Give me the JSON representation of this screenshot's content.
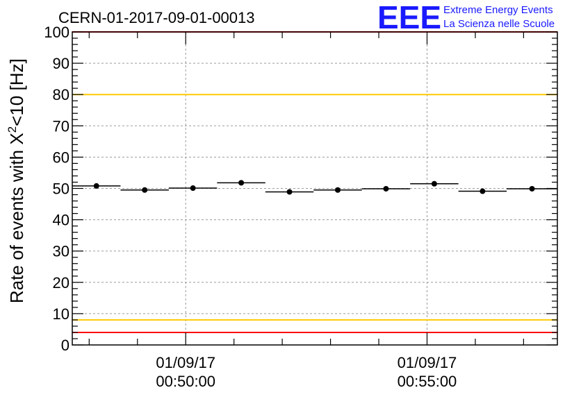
{
  "chart_data": {
    "type": "scatter",
    "title": "CERN-01-2017-09-01-00013",
    "ylabel_prefix": "Rate of events with X",
    "ylabel_sup": "2",
    "ylabel_suffix": "<10 [Hz]",
    "xlabel": "",
    "ylim": [
      0,
      100
    ],
    "yticks": [
      "0",
      "10",
      "20",
      "30",
      "40",
      "50",
      "60",
      "70",
      "80",
      "90",
      "100"
    ],
    "xlim_minutes": [
      47.65,
      57.7
    ],
    "xticks": [
      {
        "minute": 50,
        "date": "01/09/17",
        "time": "00:50:00"
      },
      {
        "minute": 55,
        "date": "01/09/17",
        "time": "00:55:00"
      }
    ],
    "grid": true,
    "points": [
      {
        "x_start": 47.65,
        "x_end": 48.65,
        "y": 50.8
      },
      {
        "x_start": 48.65,
        "x_end": 49.65,
        "y": 49.5
      },
      {
        "x_start": 49.65,
        "x_end": 50.65,
        "y": 50.1
      },
      {
        "x_start": 50.65,
        "x_end": 51.65,
        "y": 51.8
      },
      {
        "x_start": 51.65,
        "x_end": 52.65,
        "y": 48.9
      },
      {
        "x_start": 52.65,
        "x_end": 53.65,
        "y": 49.5
      },
      {
        "x_start": 53.65,
        "x_end": 54.65,
        "y": 49.9
      },
      {
        "x_start": 54.65,
        "x_end": 55.65,
        "y": 51.5
      },
      {
        "x_start": 55.65,
        "x_end": 56.65,
        "y": 49.1
      },
      {
        "x_start": 56.65,
        "x_end": 57.7,
        "y": 49.9
      }
    ],
    "reference_lines": [
      {
        "y": 100,
        "color": "#ff0000"
      },
      {
        "y": 80,
        "color": "#ffcc00"
      },
      {
        "y": 8,
        "color": "#ffcc00"
      },
      {
        "y": 4,
        "color": "#ff0000"
      }
    ]
  },
  "logo": {
    "mark": "EEE",
    "line1": "Extreme Energy Events",
    "line2": "La Scienza nelle Scuole",
    "color": "#1a1aff"
  }
}
